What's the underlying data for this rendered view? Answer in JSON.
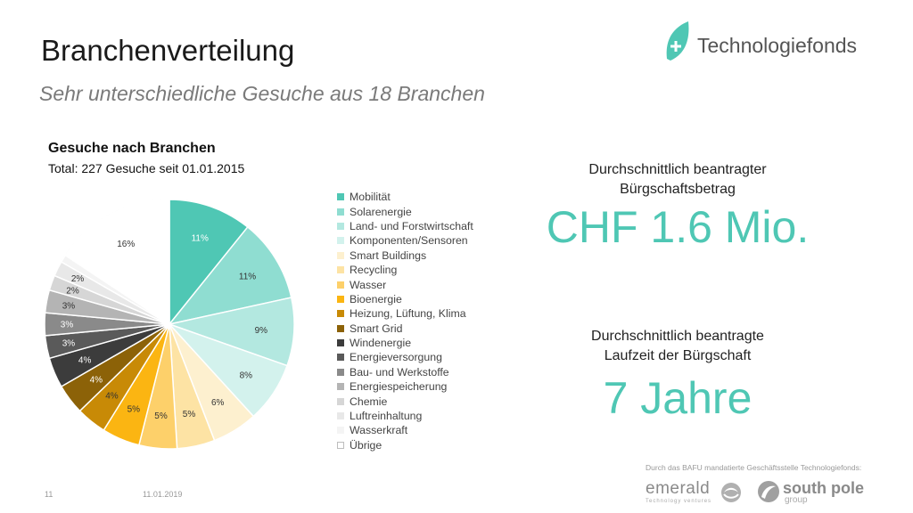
{
  "header": {
    "title": "Branchenverteilung",
    "subtitle": "Sehr unterschiedliche Gesuche aus 18 Branchen",
    "brand": "Technologiefonds",
    "brand_color": "#4fc7b4"
  },
  "stats": {
    "amount_label_line1": "Durchschnittlich beantragter",
    "amount_label_line2": "Bürgschaftsbetrag",
    "amount_value": "CHF 1.6 Mio.",
    "duration_label_line1": "Durchschnittlich beantragte",
    "duration_label_line2": "Laufzeit der Bürgschaft",
    "duration_value": "7 Jahre"
  },
  "footer": {
    "note": "Durch das BAFU mandatierte Geschäftsstelle Technologiefonds:",
    "partner1": "emerald",
    "partner1_sub": "Technology ventures",
    "partner2": "south pole",
    "partner2_sub": "group",
    "page_number": "11",
    "date": "11.01.2019"
  },
  "chart_data": {
    "type": "pie",
    "title": "Gesuche nach Branchen",
    "subtitle": "Total: 227 Gesuche seit 01.01.2015",
    "legend_position": "right",
    "slices": [
      {
        "name": "Mobilität",
        "value": 11,
        "label": "11%",
        "color": "#4fc7b4",
        "label_color": "#ffffff"
      },
      {
        "name": "Solarenergie",
        "value": 11,
        "label": "11%",
        "color": "#8fddd1",
        "label_color": "#333333"
      },
      {
        "name": "Land- und Forstwirtschaft",
        "value": 9,
        "label": "9%",
        "color": "#b3e8e0",
        "label_color": "#333333"
      },
      {
        "name": "Komponenten/Sensoren",
        "value": 8,
        "label": "8%",
        "color": "#d3f2ed",
        "label_color": "#333333"
      },
      {
        "name": "Smart Buildings",
        "value": 6,
        "label": "6%",
        "color": "#fdf0cf",
        "label_color": "#333333"
      },
      {
        "name": "Recycling",
        "value": 5,
        "label": "5%",
        "color": "#fde3a4",
        "label_color": "#333333"
      },
      {
        "name": "Wasser",
        "value": 5,
        "label": "5%",
        "color": "#fdd06a",
        "label_color": "#333333"
      },
      {
        "name": "Bioenergie",
        "value": 5,
        "label": "5%",
        "color": "#fbb512",
        "label_color": "#333333"
      },
      {
        "name": "Heizung, Lüftung, Klima",
        "value": 4,
        "label": "4%",
        "color": "#c88a06",
        "label_color": "#333333"
      },
      {
        "name": "Smart Grid",
        "value": 4,
        "label": "4%",
        "color": "#8c6208",
        "label_color": "#ffffff"
      },
      {
        "name": "Windenergie",
        "value": 4,
        "label": "4%",
        "color": "#3c3c3c",
        "label_color": "#ffffff"
      },
      {
        "name": "Energieversorgung",
        "value": 3,
        "label": "3%",
        "color": "#5a5a5a",
        "label_color": "#ffffff"
      },
      {
        "name": "Bau- und Werkstoffe",
        "value": 3,
        "label": "3%",
        "color": "#8a8a8a",
        "label_color": "#ffffff"
      },
      {
        "name": "Energiespeicherung",
        "value": 3,
        "label": "3%",
        "color": "#b4b4b4",
        "label_color": "#333333"
      },
      {
        "name": "Chemie",
        "value": 2,
        "label": "2%",
        "color": "#d6d6d6",
        "label_color": "#333333"
      },
      {
        "name": "Luftreinhaltung",
        "value": 2,
        "label": "2%",
        "color": "#e8e8e8",
        "label_color": "#333333"
      },
      {
        "name": "Wasserkraft",
        "value": 1,
        "label": "",
        "color": "#f4f4f4",
        "label_color": "#333333"
      },
      {
        "name": "Übrige",
        "value": 16,
        "label": "16%",
        "color": "#ffffff",
        "label_color": "#333333"
      }
    ]
  }
}
